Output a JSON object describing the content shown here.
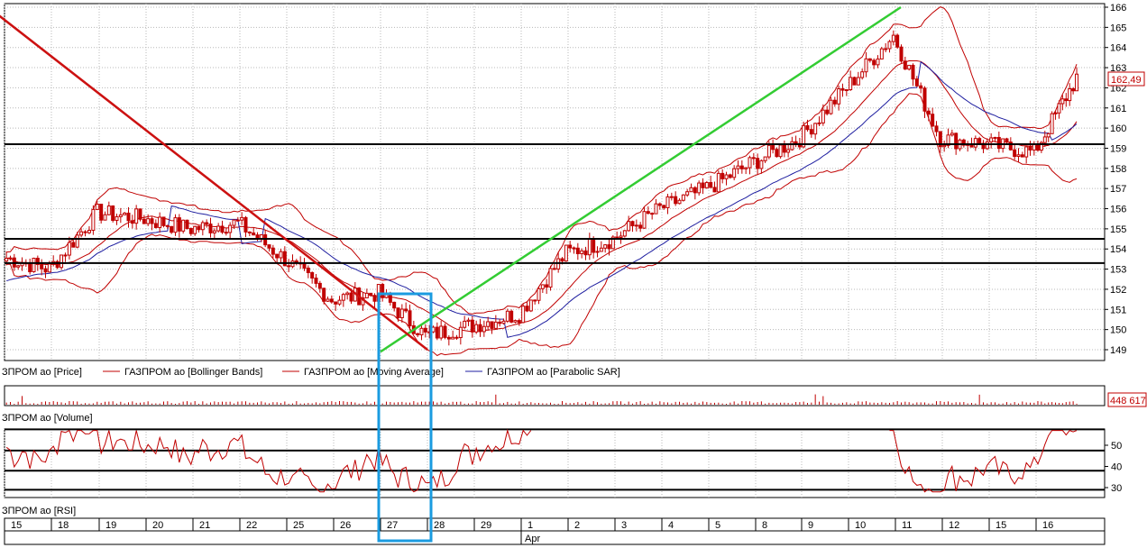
{
  "instrument": "ГАЗПРОМ ао",
  "colors": {
    "candle": "#c00000",
    "bands": "#c00000",
    "sar": "#1f1fa0",
    "trend_up": "#33cc33",
    "trend_support": "#cc1111",
    "highlight": "#1a9be0",
    "grid": "#b8b8b8",
    "hline": "#000000"
  },
  "legend": {
    "price": "ЗПРОМ ао [Price]",
    "bollinger": "ГАЗПРОМ ао [Bollinger Bands]",
    "ma": "ГАЗПРОМ ао [Moving Average]",
    "sar": "ГАЗПРОМ ао [Parabolic SAR]"
  },
  "volume_label": "ЗПРОМ ао [Volume]",
  "rsi_label": "ЗПРОМ ао [RSI]",
  "last_price_label": "162,49",
  "last_volume_label": "448 617",
  "month_label": "Apr",
  "chart_data": [
    {
      "type": "candlestick",
      "panel": "price",
      "ylim": [
        148.5,
        166
      ],
      "yticks": [
        "149",
        "150",
        "151",
        "152",
        "153",
        "154",
        "155",
        "156",
        "157",
        "158",
        "159",
        "160",
        "161",
        "162",
        "163",
        "164",
        "165",
        "166"
      ],
      "grid": true,
      "legend_placement": "bottom",
      "x_labels": [
        "15",
        "18",
        "19",
        "20",
        "21",
        "22",
        "25",
        "26",
        "27",
        "28",
        "29",
        "1",
        "2",
        "3",
        "4",
        "5",
        "8",
        "9",
        "10",
        "11",
        "12",
        "15",
        "16"
      ],
      "close_by_day": [
        153.0,
        155.8,
        155.5,
        155.0,
        155.3,
        153.5,
        151.5,
        151.8,
        149.7,
        150.2,
        150.8,
        153.8,
        154.5,
        156.0,
        157.0,
        158.3,
        159.5,
        162.0,
        164.6,
        159.5,
        159.2,
        158.8,
        162.49
      ],
      "horizontal_levels": [
        159.2,
        154.5,
        153.3
      ],
      "trendlines": [
        {
          "name": "upper",
          "from": {
            "day": "27",
            "price": 148.9
          },
          "to": {
            "day": "11",
            "price": 166.0
          }
        },
        {
          "name": "lower",
          "from": {
            "day": "28",
            "price": 149.0
          },
          "to": {
            "day": "15",
            "price": 166.0
          }
        }
      ],
      "last_price": 162.49
    },
    {
      "type": "bar",
      "panel": "volume",
      "last_value": 448617
    },
    {
      "type": "line",
      "panel": "rsi",
      "ylim": [
        25,
        58
      ],
      "yticks": [
        "30",
        "40",
        "50"
      ],
      "horizontal_levels": [
        57.5,
        47.5,
        38,
        29
      ]
    }
  ]
}
